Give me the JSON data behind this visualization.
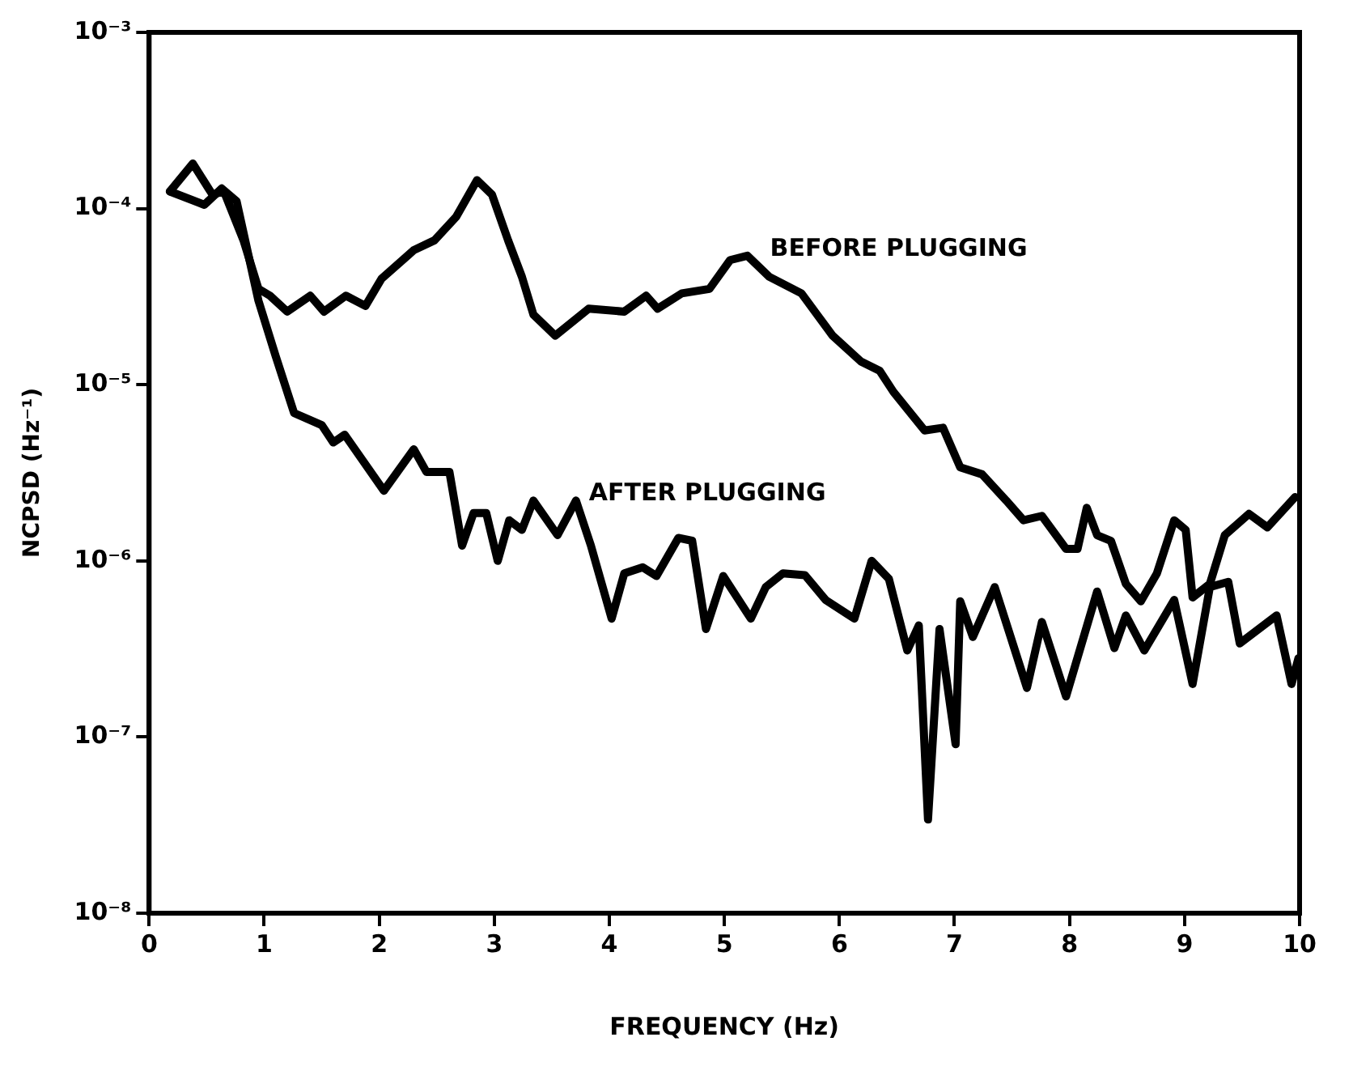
{
  "chart_data": {
    "type": "line",
    "xlabel": "FREQUENCY (Hz)",
    "ylabel": "NCPSD (Hz⁻¹)",
    "log": "y",
    "grid": false,
    "legend": false,
    "marker": "none",
    "line_style": "solid",
    "xlim": [
      0,
      10
    ],
    "xticks": [
      0,
      1,
      2,
      3,
      4,
      5,
      6,
      7,
      8,
      9,
      10
    ],
    "ylim": [
      1e-08,
      0.001
    ],
    "yticks": [
      {
        "value": 1e-08,
        "label": "10⁻⁸"
      },
      {
        "value": 1e-07,
        "label": "10⁻⁷"
      },
      {
        "value": 1e-06,
        "label": "10⁻⁶"
      },
      {
        "value": 1e-05,
        "label": "10⁻⁵"
      },
      {
        "value": 0.0001,
        "label": "10⁻⁴"
      },
      {
        "value": 0.001,
        "label": "10⁻³"
      }
    ],
    "series": [
      {
        "name": "BEFORE PLUGGING",
        "color": "#000000",
        "x": [
          0.18,
          0.38,
          0.55,
          0.65,
          0.82,
          0.95,
          1.05,
          1.2,
          1.4,
          1.52,
          1.71,
          1.88,
          2.02,
          2.3,
          2.48,
          2.67,
          2.85,
          2.98,
          3.12,
          3.24,
          3.34,
          3.53,
          3.82,
          4.13,
          4.32,
          4.42,
          4.63,
          4.87,
          5.05,
          5.2,
          5.39,
          5.67,
          5.94,
          6.19,
          6.35,
          6.47,
          6.74,
          6.9,
          7.05,
          7.24,
          7.45,
          7.6,
          7.76,
          7.97,
          8.07,
          8.15,
          8.24,
          8.36,
          8.49,
          8.62,
          8.76,
          8.91,
          9.01,
          9.07,
          9.22,
          9.35,
          9.56,
          9.72,
          9.96
        ],
        "values": [
          0.000125,
          0.00018,
          0.00012,
          0.000125,
          6.6e-05,
          3.5e-05,
          3.2e-05,
          2.6e-05,
          3.2e-05,
          2.6e-05,
          3.2e-05,
          2.8e-05,
          4e-05,
          5.8e-05,
          6.6e-05,
          9e-05,
          0.000145,
          0.00012,
          6.6e-05,
          4.1e-05,
          2.5e-05,
          1.9e-05,
          2.7e-05,
          2.6e-05,
          3.2e-05,
          2.7e-05,
          3.3e-05,
          3.5e-05,
          5.1e-05,
          5.4e-05,
          4.1e-05,
          3.3e-05,
          1.9e-05,
          1.35e-05,
          1.2e-05,
          9.1e-06,
          5.5e-06,
          5.7e-06,
          3.4e-06,
          3.1e-06,
          2.2e-06,
          1.7e-06,
          1.8e-06,
          1.17e-06,
          1.17e-06,
          2e-06,
          1.4e-06,
          1.3e-06,
          7.4e-07,
          5.9e-07,
          8.5e-07,
          1.7e-06,
          1.5e-06,
          6.2e-07,
          7.4e-07,
          1.4e-06,
          1.85e-06,
          1.55e-06,
          2.3e-06
        ]
      },
      {
        "name": "AFTER PLUGGING",
        "color": "#000000",
        "x": [
          0.18,
          0.48,
          0.63,
          0.76,
          0.95,
          1.1,
          1.26,
          1.5,
          1.6,
          1.7,
          2.04,
          2.3,
          2.41,
          2.61,
          2.72,
          2.82,
          2.93,
          3.03,
          3.13,
          3.24,
          3.34,
          3.55,
          3.71,
          3.84,
          4.02,
          4.13,
          4.29,
          4.41,
          4.6,
          4.72,
          4.84,
          4.99,
          5.23,
          5.36,
          5.51,
          5.7,
          5.88,
          6.13,
          6.28,
          6.43,
          6.59,
          6.69,
          6.77,
          6.87,
          7.01,
          7.05,
          7.16,
          7.35,
          7.63,
          7.76,
          7.97,
          8.24,
          8.39,
          8.49,
          8.65,
          8.91,
          9.07,
          9.22,
          9.38,
          9.48,
          9.8,
          9.93,
          9.99
        ],
        "values": [
          0.000125,
          0.000105,
          0.00013,
          0.00011,
          3e-05,
          1.45e-05,
          6.9e-06,
          5.9e-06,
          4.7e-06,
          5.2e-06,
          2.5e-06,
          4.3e-06,
          3.2e-06,
          3.2e-06,
          1.22e-06,
          1.87e-06,
          1.87e-06,
          1e-06,
          1.7e-06,
          1.5e-06,
          2.2e-06,
          1.4e-06,
          2.2e-06,
          1.22e-06,
          4.7e-07,
          8.5e-07,
          9.2e-07,
          8.2e-07,
          1.35e-06,
          1.3e-06,
          4.1e-07,
          8.2e-07,
          4.7e-07,
          7.1e-07,
          8.5e-07,
          8.3e-07,
          6e-07,
          4.7e-07,
          1e-06,
          7.9e-07,
          3.1e-07,
          4.3e-07,
          3.4e-08,
          4.1e-07,
          9.1e-08,
          5.9e-07,
          3.7e-07,
          7.1e-07,
          1.9e-07,
          4.5e-07,
          1.7e-07,
          6.7e-07,
          3.2e-07,
          4.9e-07,
          3.1e-07,
          6e-07,
          2e-07,
          7.1e-07,
          7.6e-07,
          3.4e-07,
          4.9e-07,
          2e-07,
          2.8e-07
        ]
      }
    ]
  }
}
